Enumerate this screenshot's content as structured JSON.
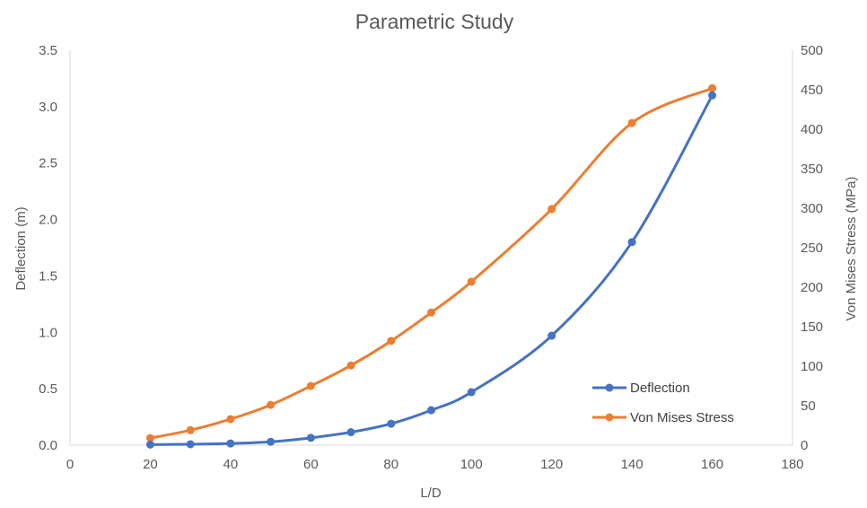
{
  "chart_data": {
    "type": "line",
    "title": "Parametric Study",
    "xlabel": "L/D",
    "ylabel": "Deflection (m)",
    "y2label": "Von Mises Stress (MPa)",
    "xlim": [
      0,
      180
    ],
    "ylim": [
      0,
      3.5
    ],
    "y2lim": [
      0,
      500
    ],
    "x_ticks": [
      "0",
      "20",
      "40",
      "60",
      "80",
      "100",
      "120",
      "140",
      "160",
      "180"
    ],
    "y_ticks": [
      "0.0",
      "0.5",
      "1.0",
      "1.5",
      "2.0",
      "2.5",
      "3.0",
      "3.5"
    ],
    "y2_ticks": [
      "0",
      "50",
      "100",
      "150",
      "200",
      "250",
      "300",
      "350",
      "400",
      "450",
      "500"
    ],
    "grid": false,
    "legend_position": "bottom-right",
    "smooth": true,
    "series": [
      {
        "name": "Deflection",
        "axis": "left",
        "color": "#4472C4",
        "x": [
          20,
          30,
          40,
          50,
          60,
          70,
          80,
          90,
          100,
          120,
          140,
          160
        ],
        "values": [
          0.005,
          0.008,
          0.015,
          0.03,
          0.065,
          0.115,
          0.19,
          0.31,
          0.47,
          0.97,
          1.8,
          3.1
        ]
      },
      {
        "name": "Von Mises Stress",
        "axis": "right",
        "color": "#ED7D31",
        "x": [
          20,
          30,
          40,
          50,
          60,
          70,
          80,
          90,
          100,
          120,
          140,
          160
        ],
        "values": [
          9,
          19,
          33,
          51,
          75,
          101,
          132,
          168,
          207,
          299,
          408,
          452
        ]
      }
    ]
  }
}
